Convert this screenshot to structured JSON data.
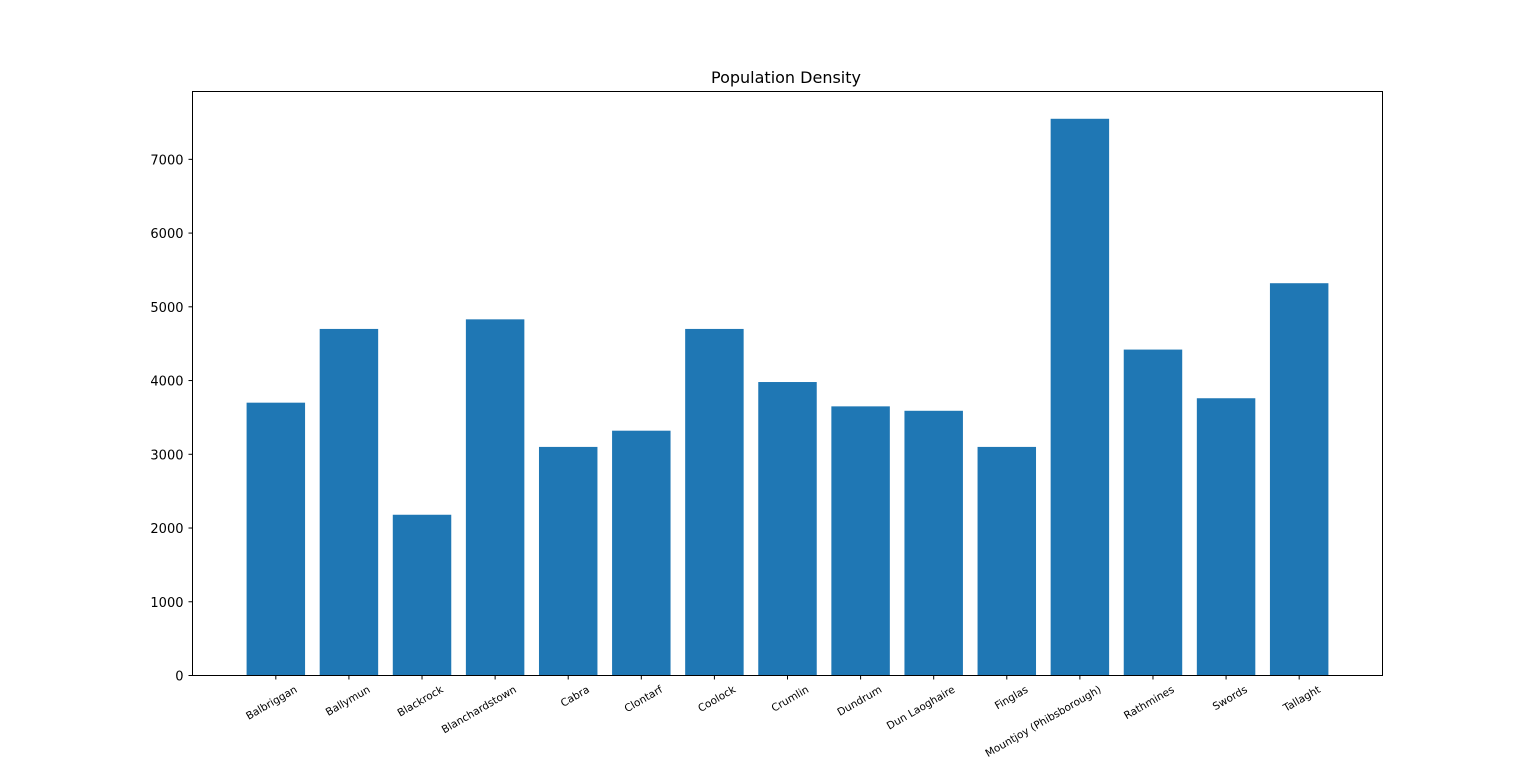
{
  "chart_data": {
    "type": "bar",
    "title": "Population Density",
    "xlabel": "",
    "ylabel": "",
    "categories": [
      "Balbriggan",
      "Ballymun",
      "Blackrock",
      "Blanchardstown",
      "Cabra",
      "Clontarf",
      "Coolock",
      "Crumlin",
      "Dundrum",
      "Dun Laoghaire",
      "Finglas",
      "Mountjoy (Phibsborough)",
      "Rathmines",
      "Swords",
      "Tallaght"
    ],
    "values": [
      3700,
      4700,
      2180,
      4830,
      3100,
      3320,
      4700,
      3980,
      3650,
      3590,
      3100,
      7550,
      4420,
      3760,
      5320
    ],
    "ylim": [
      0,
      7920
    ],
    "yticks": [
      0,
      1000,
      2000,
      3000,
      4000,
      5000,
      6000,
      7000
    ],
    "grid": false,
    "legend": "none",
    "bar_color": "#1f77b4"
  }
}
